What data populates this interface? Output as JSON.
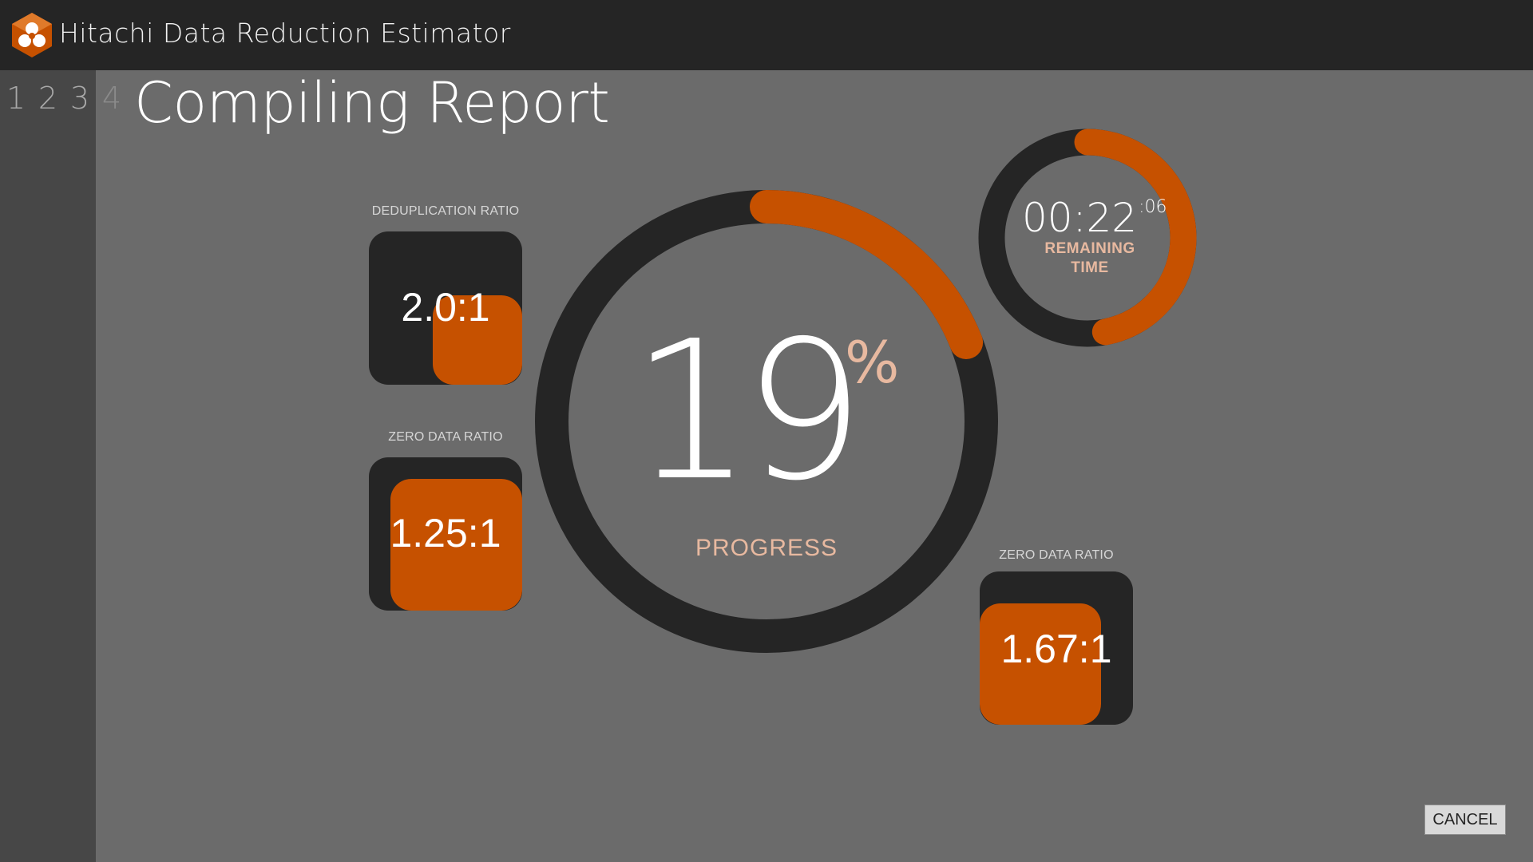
{
  "app": {
    "title": "Hitachi Data Reduction Estimator",
    "logo_icon": "hitachi-logo-icon"
  },
  "steps": [
    "1",
    "2",
    "3",
    "4"
  ],
  "page": {
    "title": "Compiling Report"
  },
  "progress": {
    "value": "19",
    "percent_sign": "%",
    "label": "PROGRESS",
    "fraction": 0.19
  },
  "timer": {
    "main": "00:22",
    "seconds": ":06",
    "label": "REMAINING TIME",
    "fraction": 0.47
  },
  "cards": {
    "dedup": {
      "label": "DEDUPLICATION RATIO",
      "value": "2.0:1"
    },
    "zero1": {
      "label": "ZERO DATA RATIO",
      "value": "1.25:1"
    },
    "zero2": {
      "label": "ZERO DATA RATIO",
      "value": "1.67:1"
    }
  },
  "cancel_label": "CANCEL",
  "colors": {
    "accent": "#c65100",
    "ring": "#252525",
    "label_accent": "#e8b9a0",
    "background": "#6b6b6b"
  }
}
